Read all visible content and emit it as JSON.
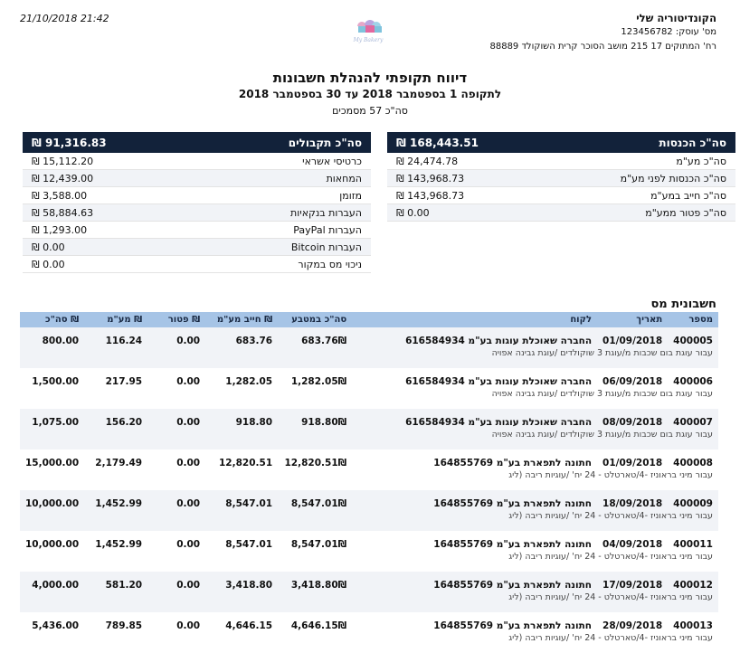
{
  "header": {
    "datetime": "21/10/2018 21:42",
    "business_name": "הקונדיטוריה שלי",
    "business_id": "מס' עוסק: 123456782",
    "address": "רח' המתוקים 17 215 מושב הסוכר קרית השוקולד 88889",
    "logo_text": "My Bakery"
  },
  "report": {
    "title": "דיווח תקופתי להנהלת חשבונות",
    "period": "לתקופה 1 בספטמבר 2018 עד 30 בספטמבר 2018",
    "doc_count": "סה\"כ 57 מסמכים"
  },
  "income": {
    "header_label": "סה\"כ הכנסות",
    "header_value": "₪ 168,443.51",
    "rows": [
      {
        "label": "סה\"כ מע\"מ",
        "value": "₪ 24,474.78"
      },
      {
        "label": "סה\"כ הכנסות לפני מע\"מ",
        "value": "₪ 143,968.73"
      },
      {
        "label": "סה\"כ חייב במע\"מ",
        "value": "₪ 143,968.73"
      },
      {
        "label": "סה\"כ פטור ממע\"מ",
        "value": "₪ 0.00"
      }
    ]
  },
  "receipts": {
    "header_label": "סה\"כ תקבולים",
    "header_value": "₪ 91,316.83",
    "rows": [
      {
        "label": "כרטיסי אשראי",
        "value": "₪ 15,112.20"
      },
      {
        "label": "המחאות",
        "value": "₪ 12,439.00"
      },
      {
        "label": "מזומן",
        "value": "₪ 3,588.00"
      },
      {
        "label": "העברות בנקאיות",
        "value": "₪ 58,884.63"
      },
      {
        "label": "העברות PayPal",
        "value": "₪ 1,293.00"
      },
      {
        "label": "העברות Bitcoin",
        "value": "₪ 0.00"
      },
      {
        "label": "ניכוי מס במקור",
        "value": "₪ 0.00"
      }
    ]
  },
  "invoices": {
    "section_title": "חשבונית מס",
    "columns": {
      "number": "מספר",
      "date": "תאריך",
      "customer": "לקוח",
      "total_in_currency": "סה\"כ במטבע",
      "vat_liable": "חייב מע\"מ ₪",
      "exempt": "פטור ₪",
      "vat": "מע\"מ ₪",
      "total": "סה\"כ ₪"
    },
    "rows": [
      {
        "number": "400005",
        "date": "01/09/2018",
        "customer": "החברה שאוכלת עוגות בע\"מ 616584934",
        "desc": "עבור עוגת בום שכבות מ/עוגת 3 שוקולדים /עוגת גבינה אפויה",
        "currency_total": "683.76₪",
        "vat_liable": "683.76",
        "exempt": "0.00",
        "vat": "116.24",
        "total": "800.00"
      },
      {
        "number": "400006",
        "date": "06/09/2018",
        "customer": "החברה שאוכלת עוגות בע\"מ 616584934",
        "desc": "עבור עוגת בום שכבות מ/עוגת 3 שוקולדים /עוגת גבינה אפויה",
        "currency_total": "1,282.05₪",
        "vat_liable": "1,282.05",
        "exempt": "0.00",
        "vat": "217.95",
        "total": "1,500.00"
      },
      {
        "number": "400007",
        "date": "08/09/2018",
        "customer": "החברה שאוכלת עוגות בע\"מ 616584934",
        "desc": "עבור עוגת בום שכבות מ/עוגת 3 שוקולדים /עוגת גבינה אפויה",
        "currency_total": "918.80₪",
        "vat_liable": "918.80",
        "exempt": "0.00",
        "vat": "156.20",
        "total": "1,075.00"
      },
      {
        "number": "400008",
        "date": "01/09/2018",
        "customer": "חתונה לתפארת בע\"מ 164855769",
        "desc": "עבור מיני בראוניז -4/טארטלט - 24 יח' /עוגיות ריבה (ליג",
        "currency_total": "12,820.51₪",
        "vat_liable": "12,820.51",
        "exempt": "0.00",
        "vat": "2,179.49",
        "total": "15,000.00"
      },
      {
        "number": "400009",
        "date": "18/09/2018",
        "customer": "חתונה לתפארת בע\"מ 164855769",
        "desc": "עבור מיני בראוניז -4/טארטלט - 24 יח' /עוגיות ריבה (ליג",
        "currency_total": "8,547.01₪",
        "vat_liable": "8,547.01",
        "exempt": "0.00",
        "vat": "1,452.99",
        "total": "10,000.00"
      },
      {
        "number": "400011",
        "date": "04/09/2018",
        "customer": "חתונה לתפארת בע\"מ 164855769",
        "desc": "עבור מיני בראוניז -4/טארטלט - 24 יח' /עוגיות ריבה (ליג",
        "currency_total": "8,547.01₪",
        "vat_liable": "8,547.01",
        "exempt": "0.00",
        "vat": "1,452.99",
        "total": "10,000.00"
      },
      {
        "number": "400012",
        "date": "17/09/2018",
        "customer": "חתונה לתפארת בע\"מ 164855769",
        "desc": "עבור מיני בראוניז -4/טארטלט - 24 יח' /עוגיות ריבה (ליג",
        "currency_total": "3,418.80₪",
        "vat_liable": "3,418.80",
        "exempt": "0.00",
        "vat": "581.20",
        "total": "4,000.00"
      },
      {
        "number": "400013",
        "date": "28/09/2018",
        "customer": "חתונה לתפארת בע\"מ 164855769",
        "desc": "עבור מיני בראוניז -4/טארטלט - 24 יח' /עוגיות ריבה (ליג",
        "currency_total": "4,646.15₪",
        "vat_liable": "4,646.15",
        "exempt": "0.00",
        "vat": "789.85",
        "total": "5,436.00"
      }
    ]
  }
}
